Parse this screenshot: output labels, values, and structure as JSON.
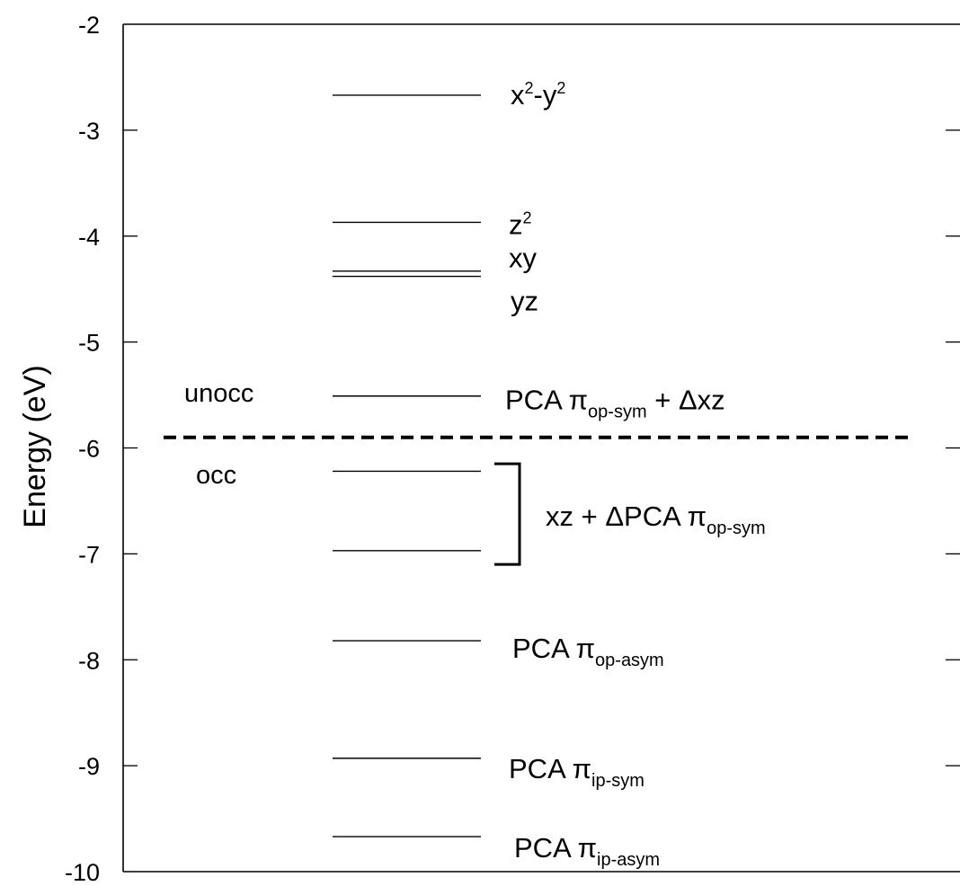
{
  "chart_data": {
    "type": "energy-level-diagram",
    "ylabel": "Energy (eV)",
    "ylim": [
      -10,
      -2
    ],
    "yticks": [
      -2,
      -3,
      -4,
      -5,
      -6,
      -7,
      -8,
      -9,
      -10
    ],
    "ytick_labels": [
      "-2",
      "-3",
      "-4",
      "-5",
      "-6",
      "-7",
      "-8",
      "-9",
      "-10"
    ],
    "grid": false,
    "fermi_level": -5.9,
    "region_labels": {
      "above": "unocc",
      "below": "occ"
    },
    "levels": [
      {
        "energy": -2.67,
        "label": "x2-y2",
        "parts": [
          [
            "x",
            ""
          ],
          [
            "2",
            "sup"
          ],
          [
            "-y",
            ""
          ],
          [
            "2",
            "sup"
          ]
        ]
      },
      {
        "energy": -3.87,
        "label": "z2",
        "parts": [
          [
            "z",
            ""
          ],
          [
            "2",
            "sup"
          ]
        ]
      },
      {
        "energy": -4.33,
        "label": "xy",
        "parts": [
          [
            "xy",
            ""
          ]
        ]
      },
      {
        "energy": -4.38,
        "label": "yz",
        "parts": [
          [
            "yz",
            ""
          ]
        ]
      },
      {
        "energy": -5.51,
        "label": "PCA πop-sym + Δxz",
        "parts": [
          [
            "PCA π",
            ""
          ],
          [
            "op-sym",
            "sub"
          ],
          [
            " + Δxz",
            ""
          ]
        ]
      },
      {
        "energy": -6.22,
        "label": "",
        "parts": []
      },
      {
        "energy": -6.97,
        "label": "",
        "parts": []
      },
      {
        "energy": -7.82,
        "label": "PCA πop-asym",
        "parts": [
          [
            "PCA π",
            ""
          ],
          [
            "op-asym",
            "sub"
          ]
        ]
      },
      {
        "energy": -8.93,
        "label": "PCA πip-sym",
        "parts": [
          [
            "PCA π",
            ""
          ],
          [
            "ip-sym",
            "sub"
          ]
        ]
      },
      {
        "energy": -9.67,
        "label": "PCA πip-asym",
        "parts": [
          [
            "PCA π",
            ""
          ],
          [
            "ip-asym",
            "sub"
          ]
        ]
      }
    ],
    "bracket": {
      "from": -6.15,
      "to": -7.1,
      "label": "xz + ΔPCA πop-sym",
      "parts": [
        [
          "xz + ΔPCA π",
          ""
        ],
        [
          "op-sym",
          "sub"
        ]
      ]
    }
  }
}
